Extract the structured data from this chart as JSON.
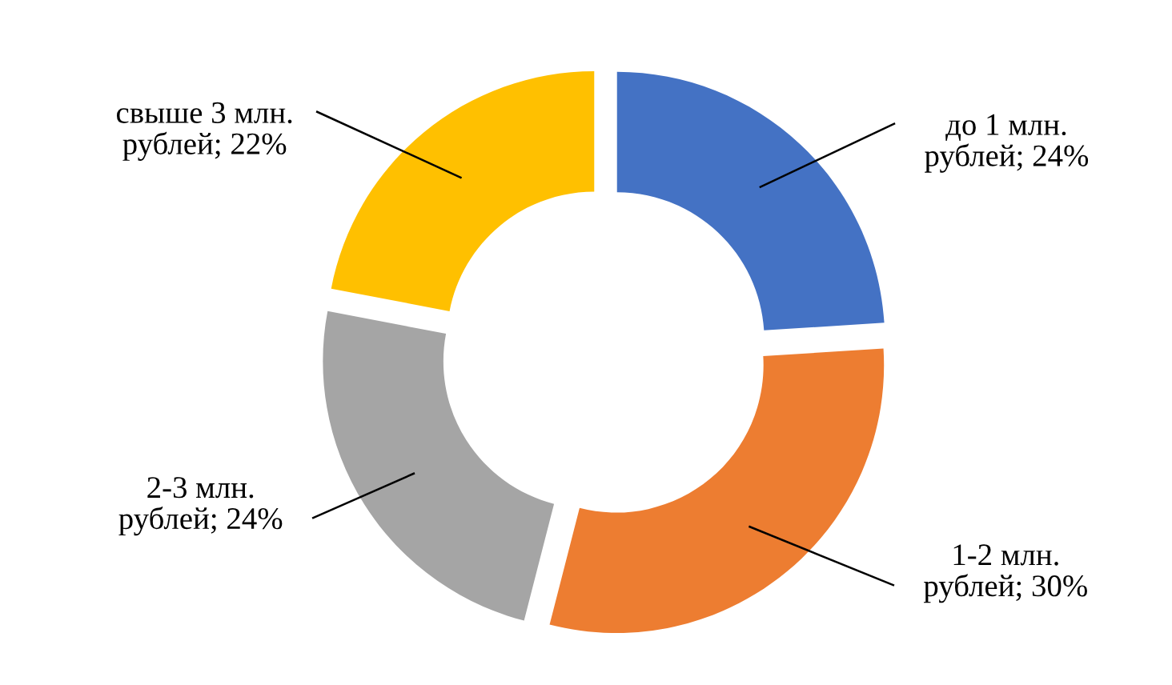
{
  "chart_data": {
    "type": "donut",
    "categories": [
      "до 1 млн. рублей",
      "1-2 млн. рублей",
      "2-3 млн. рублей",
      "свыше 3 млн. рублей"
    ],
    "values": [
      24,
      30,
      24,
      22
    ],
    "colors": [
      "#4472c4",
      "#ed7d31",
      "#a5a5a5",
      "#ffc000"
    ],
    "value_labels": [
      "; 24%",
      "; 30%",
      "; 24%",
      "; 22%"
    ]
  }
}
